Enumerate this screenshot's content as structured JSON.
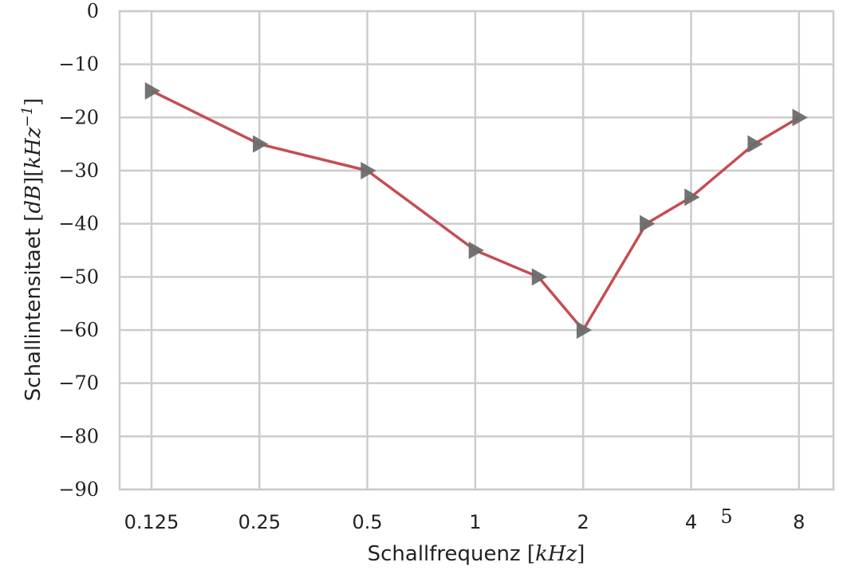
{
  "chart_data": {
    "type": "line",
    "xlabel": "Schallfrequenz [kHz]",
    "ylabel": "Schallintensitaet [dB][kHz⁻¹]",
    "x_scale": "log2",
    "x_ticks": [
      0.125,
      0.25,
      0.5,
      1,
      2,
      4,
      8
    ],
    "x_tick_labels": [
      "0.125",
      "0.25",
      "0.5",
      "1",
      "2",
      "4",
      "8"
    ],
    "extra_label": "5",
    "ylim": [
      -90,
      0
    ],
    "y_ticks": [
      0,
      -10,
      -20,
      -30,
      -40,
      -50,
      -60,
      -70,
      -80,
      -90
    ],
    "y_tick_labels": [
      "0",
      "−10",
      "−20",
      "−30",
      "−40",
      "−50",
      "−60",
      "−70",
      "−80",
      "−90"
    ],
    "grid": true,
    "series": [
      {
        "x": [
          0.125,
          0.25,
          0.5,
          1,
          1.5,
          2,
          3,
          4,
          6,
          8
        ],
        "y": [
          -15,
          -25,
          -30,
          -45,
          -50,
          -60,
          -40,
          -35,
          -25,
          -20
        ],
        "line_color": "#c44e52",
        "marker": "triangle-right",
        "marker_color": "#6b6b6b"
      }
    ]
  }
}
